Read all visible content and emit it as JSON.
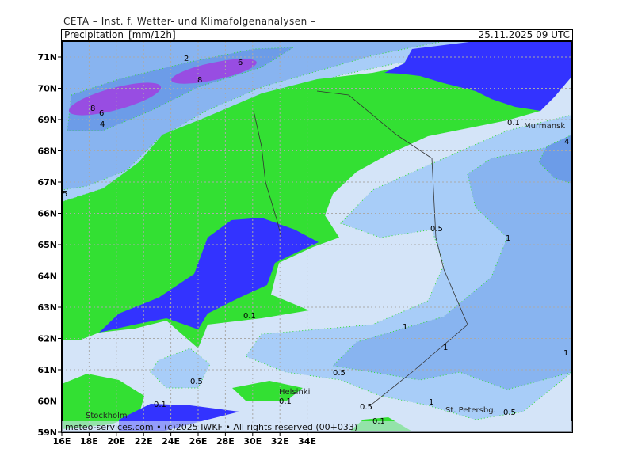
{
  "header": {
    "institute": "CETA – Inst. f. Wetter- und Klimafolgenanalysen –",
    "parameter": "Precipitation_[mm/12h]",
    "valid_time": "25.11.2025 09 UTC"
  },
  "map": {
    "region": "Fennoscandia",
    "lon_ticks": [
      "16E",
      "18E",
      "20E",
      "22E",
      "24E",
      "26E",
      "28E",
      "30E",
      "32E",
      "34E"
    ],
    "lat_ticks": [
      "71N",
      "70N",
      "69N",
      "68N",
      "67N",
      "66N",
      "65N",
      "64N",
      "63N",
      "62N",
      "61N",
      "60N",
      "59N"
    ],
    "cities": [
      "Murmansk",
      "Helsinki",
      "Stockholm",
      "St. Petersbg."
    ],
    "contour_labels": [
      "2",
      "6",
      "8",
      "8",
      "6",
      "4",
      "5",
      "0.1",
      "4",
      "0.5",
      "1",
      "0.1",
      "1",
      "1",
      "1",
      "0.5",
      "0.5",
      "0.1",
      "0.1",
      "0.5",
      "1",
      "0.1",
      "0.5"
    ],
    "colors": {
      "lt_0_1": "#d4e4f8",
      "c_0_5": "#a8cdf8",
      "c_1": "#88b4f0",
      "c_2": "#6c9ce8",
      "c_8": "#a040e0",
      "green": "#33e033",
      "blue": "#3333ff"
    },
    "footer": "meteo-services.com • (c)2025 IWKF • All rights reserved (00+033)"
  }
}
